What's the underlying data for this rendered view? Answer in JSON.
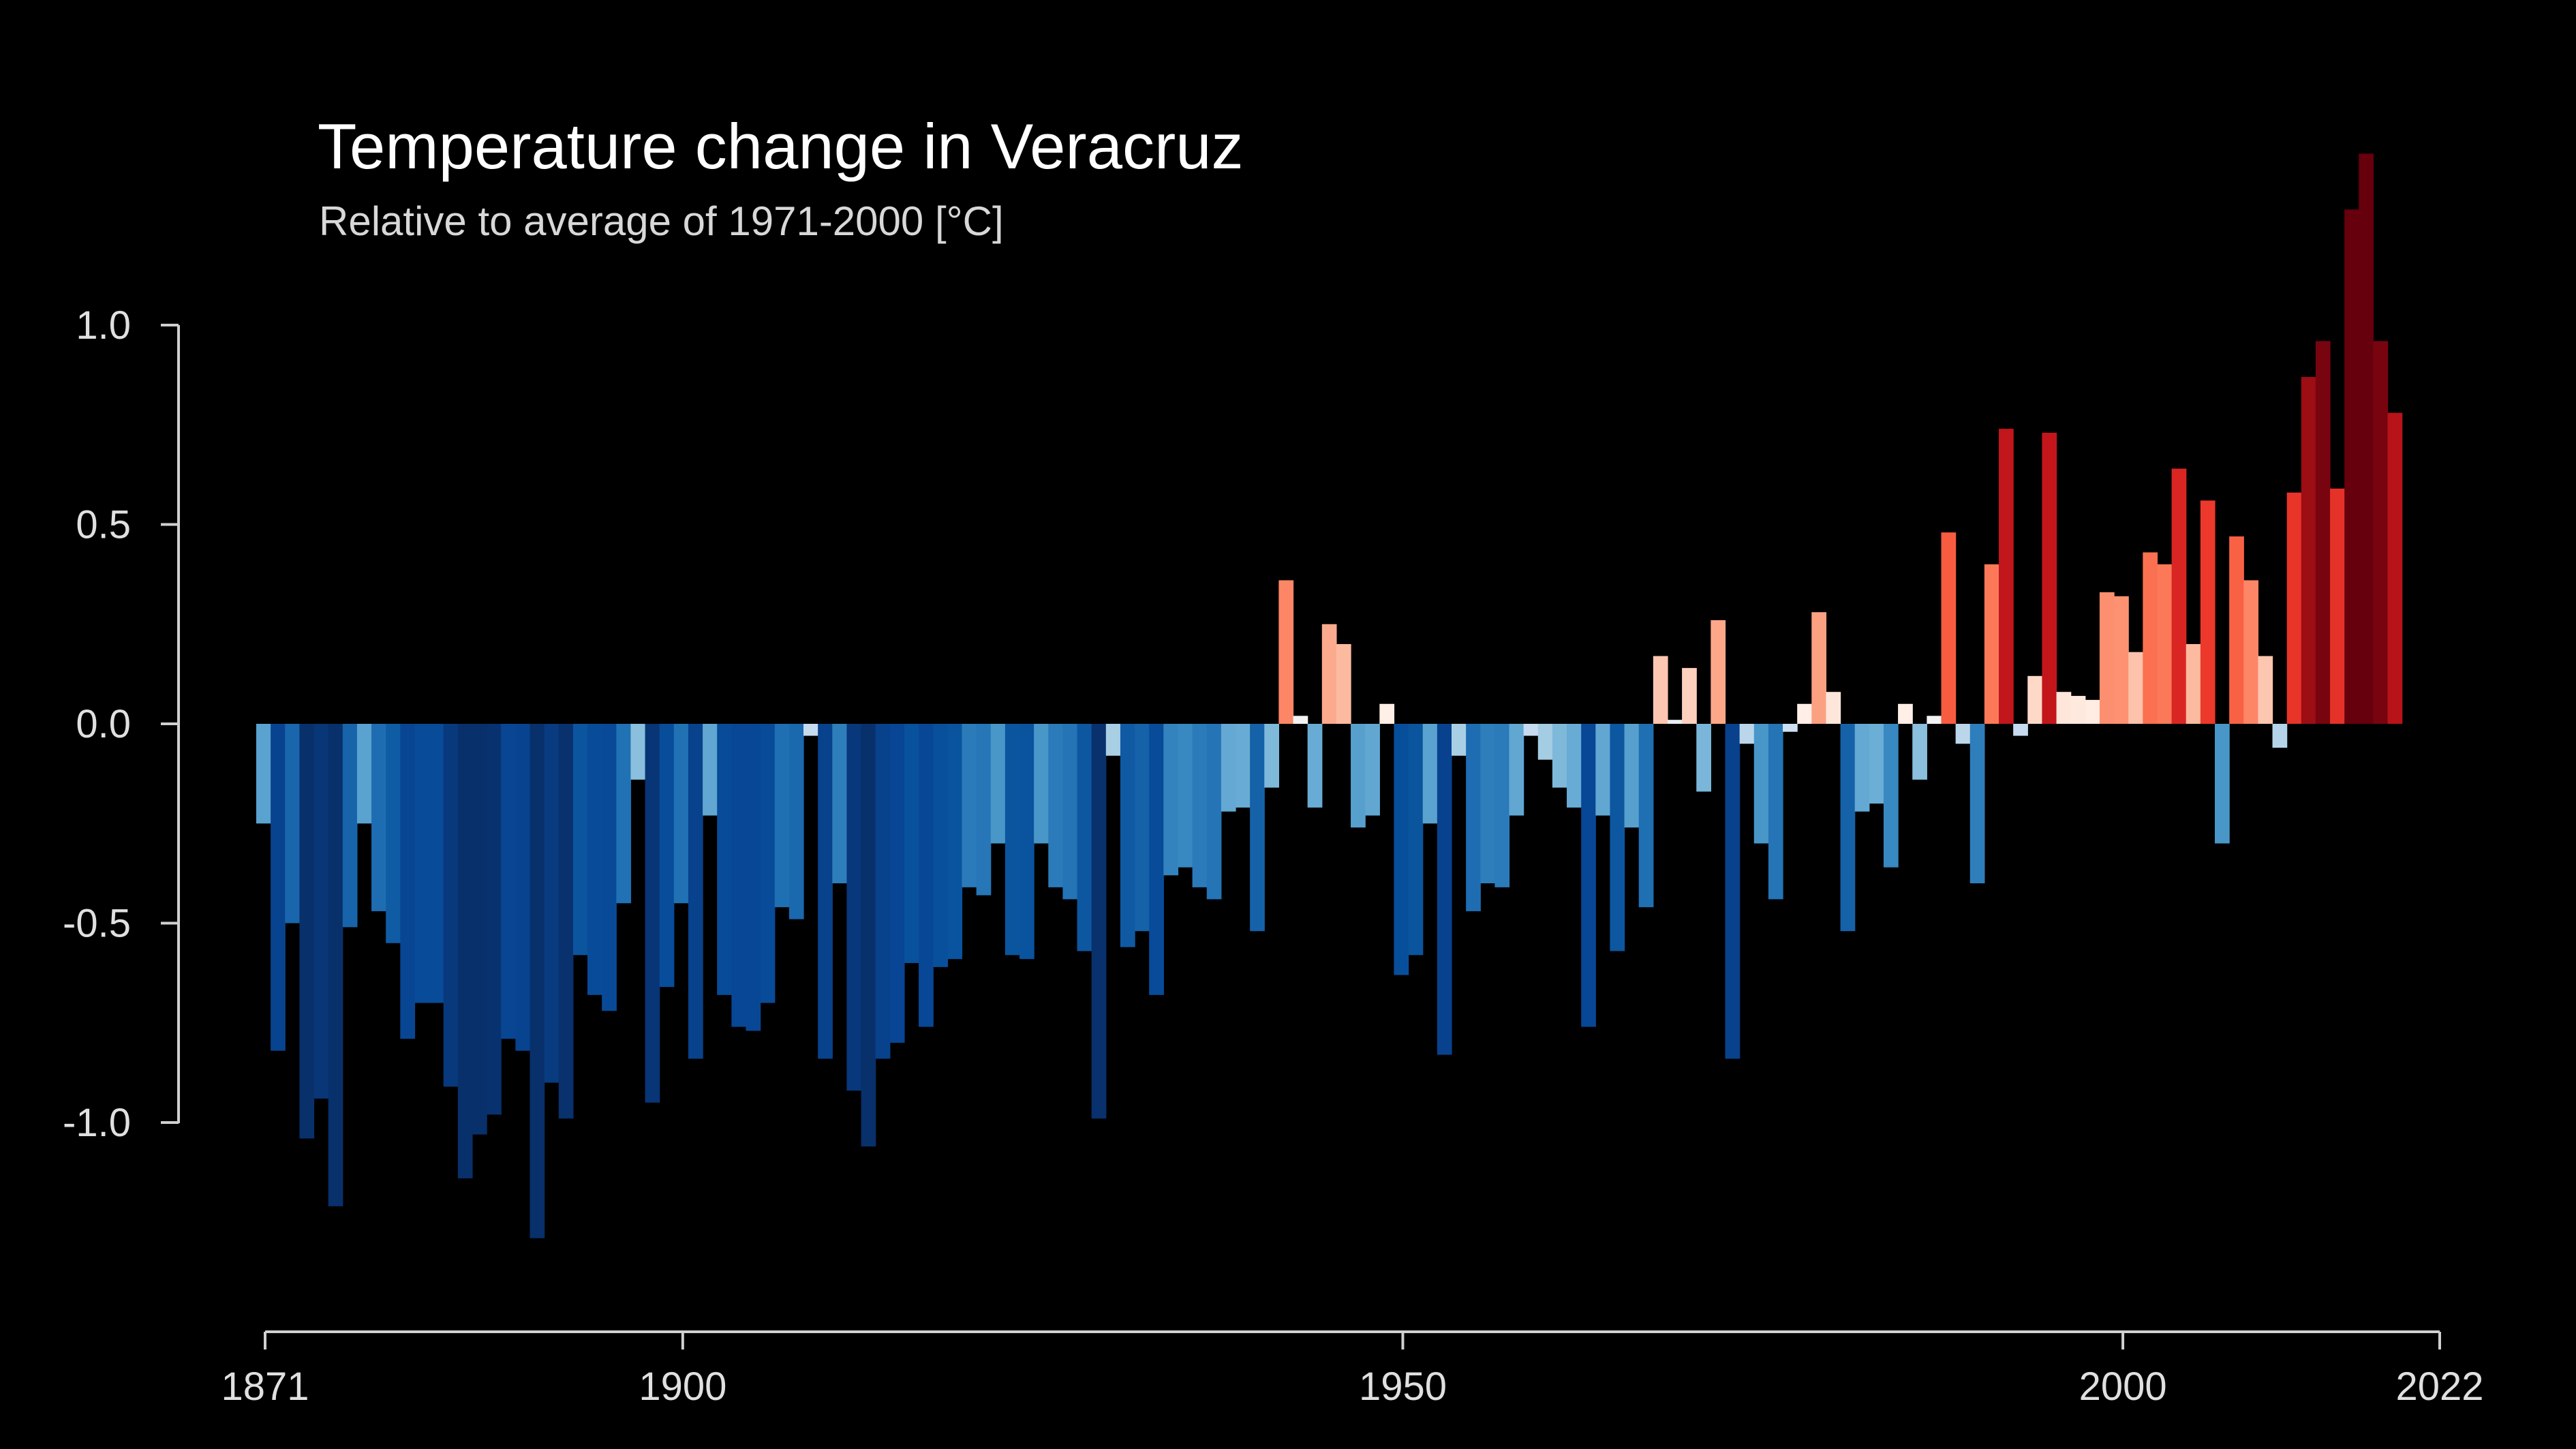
{
  "chart_data": {
    "type": "bar",
    "title": "Temperature change in Veracruz",
    "subtitle": "Relative to average of 1971-2000  [°C]",
    "xlabel": "",
    "ylabel": "",
    "x_start": 1871,
    "x_end": 2022,
    "xlim": [
      1871,
      2022
    ],
    "ylim": [
      -1.5,
      1.4
    ],
    "x_ticks": [
      "1871",
      "1900",
      "1950",
      "2000",
      "2022"
    ],
    "y_ticks": [
      "1.0",
      "0.5",
      "0.0",
      "-0.5",
      "-1.0"
    ],
    "grid": false,
    "legend": "none",
    "colors": {
      "background": "#000000",
      "warm_max": "#67000d",
      "cold_max": "#08306b"
    },
    "values": [
      -0.25,
      -0.82,
      -0.5,
      -1.04,
      -0.94,
      -1.21,
      -0.51,
      -0.25,
      -0.47,
      -0.55,
      -0.79,
      -0.7,
      -0.7,
      -0.91,
      -1.14,
      -1.03,
      -0.98,
      -0.79,
      -0.82,
      -1.29,
      -0.9,
      -0.99,
      -0.58,
      -0.68,
      -0.72,
      -0.45,
      -0.14,
      -0.95,
      -0.66,
      -0.45,
      -0.84,
      -0.23,
      -0.68,
      -0.76,
      -0.77,
      -0.7,
      -0.46,
      -0.49,
      -0.03,
      -0.84,
      -0.4,
      -0.92,
      -1.06,
      -0.84,
      -0.8,
      -0.6,
      -0.76,
      -0.61,
      -0.59,
      -0.41,
      -0.43,
      -0.3,
      -0.58,
      -0.59,
      -0.3,
      -0.41,
      -0.44,
      -0.57,
      -0.99,
      -0.08,
      -0.56,
      -0.52,
      -0.68,
      -0.38,
      -0.36,
      -0.41,
      -0.44,
      -0.22,
      -0.21,
      -0.52,
      -0.16,
      0.36,
      0.02,
      -0.21,
      0.25,
      0.2,
      -0.26,
      -0.23,
      0.05,
      -0.63,
      -0.58,
      -0.25,
      -0.83,
      -0.08,
      -0.47,
      -0.4,
      -0.41,
      -0.23,
      -0.03,
      -0.09,
      -0.16,
      -0.21,
      -0.76,
      -0.23,
      -0.57,
      -0.26,
      -0.46,
      0.17,
      0.01,
      0.14,
      -0.17,
      0.26,
      -0.84,
      -0.05,
      -0.3,
      -0.44,
      -0.02,
      0.05,
      0.28,
      0.08,
      -0.52,
      -0.22,
      -0.2,
      -0.36,
      0.05,
      -0.14,
      0.02,
      0.48,
      -0.05,
      -0.4,
      0.4,
      0.74,
      -0.03,
      0.12,
      0.73,
      0.08,
      0.07,
      0.06,
      0.33,
      0.32,
      0.18,
      0.43,
      0.4,
      0.64,
      0.2,
      0.56,
      -0.3,
      0.47,
      0.36,
      0.17,
      -0.06,
      0.58,
      0.87,
      0.96,
      0.59,
      1.29,
      1.43,
      0.96,
      0.78
    ]
  }
}
